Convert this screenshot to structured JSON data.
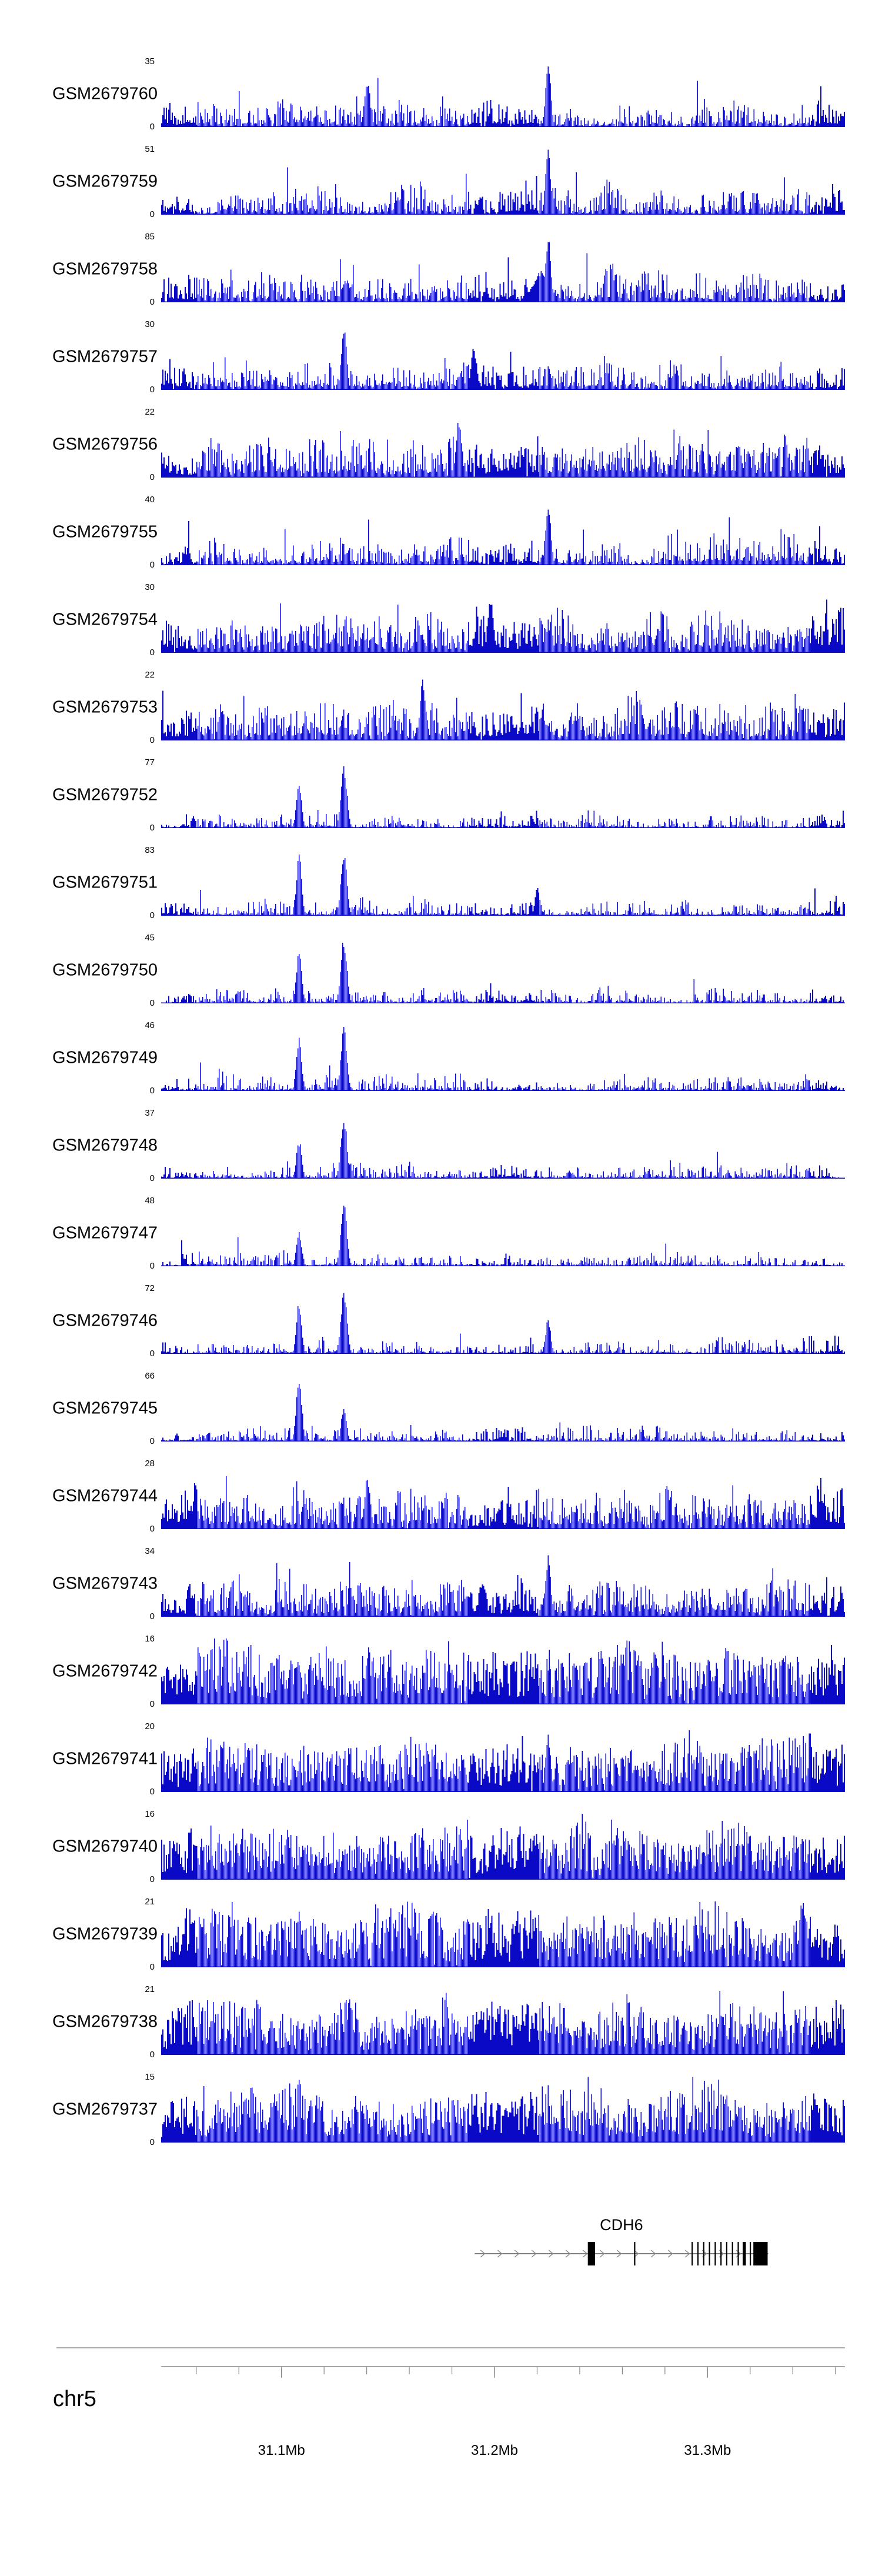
{
  "chart_data": {
    "type": "area",
    "title": "",
    "description": "Stacked genomic coverage (read-density) tracks over chr5 around the CDH6 locus",
    "region": {
      "chromosome": "chr5",
      "start_mb": 31.0435,
      "end_mb": 31.3645,
      "units": "Mb"
    },
    "signal_color": "#0909C6",
    "axis_color": "#888888",
    "gene_color": "#000000",
    "chevron_color": "#888888",
    "ymin_label": "0",
    "tracks": [
      {
        "label": "GSM2679760",
        "ymax": 35,
        "style": "spiky",
        "seed": 11,
        "peaks": [
          {
            "mb": 31.225,
            "h": 1.0,
            "kb": 1.2
          },
          {
            "mb": 31.14,
            "h": 0.75,
            "kb": 1.3
          }
        ]
      },
      {
        "label": "GSM2679759",
        "ymax": 51,
        "style": "spiky",
        "seed": 22,
        "peaks": [
          {
            "mb": 31.225,
            "h": 1.0,
            "kb": 1.2
          }
        ]
      },
      {
        "label": "GSM2679758",
        "ymax": 85,
        "style": "spiky",
        "seed": 33,
        "peaks": [
          {
            "mb": 31.225,
            "h": 1.0,
            "kb": 1.3
          },
          {
            "mb": 31.222,
            "h": 0.5,
            "kb": 4.0
          },
          {
            "mb": 31.13,
            "h": 0.35,
            "kb": 2.0
          }
        ]
      },
      {
        "label": "GSM2679757",
        "ymax": 30,
        "style": "spiky",
        "seed": 44,
        "peaks": [
          {
            "mb": 31.129,
            "h": 1.0,
            "kb": 1.2
          },
          {
            "mb": 31.19,
            "h": 0.7,
            "kb": 1.3
          }
        ]
      },
      {
        "label": "GSM2679756",
        "ymax": 22,
        "style": "medium",
        "seed": 55,
        "peaks": [
          {
            "mb": 31.183,
            "h": 0.95,
            "kb": 1.3
          }
        ]
      },
      {
        "label": "GSM2679755",
        "ymax": 40,
        "style": "spiky",
        "seed": 66,
        "peaks": [
          {
            "mb": 31.225,
            "h": 1.0,
            "kb": 1.2
          }
        ]
      },
      {
        "label": "GSM2679754",
        "ymax": 30,
        "style": "medium",
        "seed": 77,
        "peaks": [
          {
            "mb": 31.198,
            "h": 0.85,
            "kb": 1.3
          }
        ]
      },
      {
        "label": "GSM2679753",
        "ymax": 22,
        "style": "medium",
        "seed": 88,
        "peaks": [
          {
            "mb": 31.166,
            "h": 0.95,
            "kb": 1.3
          }
        ]
      },
      {
        "label": "GSM2679752",
        "ymax": 77,
        "style": "sparse",
        "seed": 99,
        "peaks": [
          {
            "mb": 31.108,
            "h": 0.72,
            "kb": 1.2
          },
          {
            "mb": 31.129,
            "h": 1.0,
            "kb": 1.4
          }
        ]
      },
      {
        "label": "GSM2679751",
        "ymax": 83,
        "style": "sparse",
        "seed": 110,
        "peaks": [
          {
            "mb": 31.108,
            "h": 0.95,
            "kb": 1.2
          },
          {
            "mb": 31.129,
            "h": 1.0,
            "kb": 1.4
          },
          {
            "mb": 31.22,
            "h": 0.45,
            "kb": 1.2
          }
        ]
      },
      {
        "label": "GSM2679750",
        "ymax": 45,
        "style": "sparse",
        "seed": 121,
        "peaks": [
          {
            "mb": 31.108,
            "h": 0.8,
            "kb": 1.2
          },
          {
            "mb": 31.129,
            "h": 1.0,
            "kb": 1.4
          }
        ]
      },
      {
        "label": "GSM2679749",
        "ymax": 46,
        "style": "sparse",
        "seed": 132,
        "peaks": [
          {
            "mb": 31.108,
            "h": 0.85,
            "kb": 1.2
          },
          {
            "mb": 31.129,
            "h": 1.0,
            "kb": 1.4
          }
        ]
      },
      {
        "label": "GSM2679748",
        "ymax": 37,
        "style": "sparse",
        "seed": 143,
        "peaks": [
          {
            "mb": 31.108,
            "h": 0.6,
            "kb": 1.2
          },
          {
            "mb": 31.129,
            "h": 1.0,
            "kb": 1.4
          }
        ]
      },
      {
        "label": "GSM2679747",
        "ymax": 48,
        "style": "sparse",
        "seed": 154,
        "peaks": [
          {
            "mb": 31.108,
            "h": 0.55,
            "kb": 1.2
          },
          {
            "mb": 31.129,
            "h": 1.0,
            "kb": 1.4
          }
        ]
      },
      {
        "label": "GSM2679746",
        "ymax": 72,
        "style": "sparse",
        "seed": 165,
        "peaks": [
          {
            "mb": 31.108,
            "h": 0.8,
            "kb": 1.2
          },
          {
            "mb": 31.129,
            "h": 1.0,
            "kb": 1.4
          },
          {
            "mb": 31.225,
            "h": 0.55,
            "kb": 1.2
          }
        ]
      },
      {
        "label": "GSM2679745",
        "ymax": 66,
        "style": "sparse",
        "seed": 176,
        "peaks": [
          {
            "mb": 31.108,
            "h": 1.0,
            "kb": 1.3
          },
          {
            "mb": 31.129,
            "h": 0.55,
            "kb": 1.2
          }
        ]
      },
      {
        "label": "GSM2679744",
        "ymax": 28,
        "style": "medium",
        "seed": 187,
        "peaks": [
          {
            "mb": 31.14,
            "h": 0.85,
            "kb": 1.3
          }
        ]
      },
      {
        "label": "GSM2679743",
        "ymax": 34,
        "style": "medium",
        "seed": 198,
        "peaks": [
          {
            "mb": 31.225,
            "h": 1.0,
            "kb": 1.2
          }
        ]
      },
      {
        "label": "GSM2679742",
        "ymax": 16,
        "style": "dense",
        "seed": 209,
        "peaks": []
      },
      {
        "label": "GSM2679741",
        "ymax": 20,
        "style": "dense",
        "seed": 220,
        "peaks": [
          {
            "mb": 31.225,
            "h": 0.9,
            "kb": 1.2
          }
        ]
      },
      {
        "label": "GSM2679740",
        "ymax": 16,
        "style": "dense",
        "seed": 231,
        "peaks": []
      },
      {
        "label": "GSM2679739",
        "ymax": 21,
        "style": "dense",
        "seed": 242,
        "peaks": [
          {
            "mb": 31.108,
            "h": 0.85,
            "kb": 1.2
          }
        ]
      },
      {
        "label": "GSM2679738",
        "ymax": 21,
        "style": "dense",
        "seed": 253,
        "peaks": []
      },
      {
        "label": "GSM2679737",
        "ymax": 15,
        "style": "dense",
        "seed": 264,
        "peaks": []
      }
    ],
    "gene_track": {
      "gene": "CDH6",
      "strand": "+",
      "start_mb": 31.1907,
      "end_mb": 31.3285,
      "exons_mb": [
        [
          31.2438,
          31.2472
        ],
        [
          31.2655,
          31.2661
        ],
        [
          31.2925,
          31.2931
        ],
        [
          31.2952,
          31.2958
        ],
        [
          31.2979,
          31.2985
        ],
        [
          31.3006,
          31.3012
        ],
        [
          31.3033,
          31.3039
        ],
        [
          31.306,
          31.3066
        ],
        [
          31.3087,
          31.3093
        ],
        [
          31.3114,
          31.312
        ],
        [
          31.3141,
          31.3147
        ],
        [
          31.3165,
          31.318
        ],
        [
          31.3198,
          31.3204
        ],
        [
          31.3215,
          31.3282
        ]
      ]
    },
    "axis": {
      "chromosome_label": "chr5",
      "minor_tick_step_mb": 0.02,
      "ticks": [
        {
          "mb": 31.1,
          "label": "31.1Mb"
        },
        {
          "mb": 31.2,
          "label": "31.2Mb"
        },
        {
          "mb": 31.3,
          "label": "31.3Mb"
        }
      ]
    }
  }
}
